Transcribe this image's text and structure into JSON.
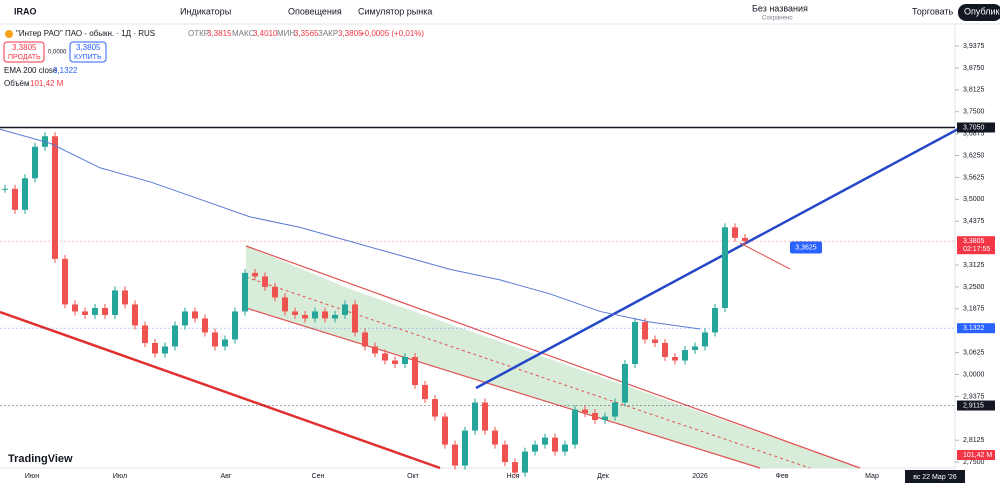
{
  "toolbar": {
    "symbol": "IRAO",
    "indicators": "Индикаторы",
    "alerts": "Оповещения",
    "replay": "Симулятор рынка",
    "layout_name": "Без названия",
    "layout_status": "Сохранено",
    "trade": "Торговать",
    "publish": "Опубликовать"
  },
  "legend": {
    "title": "\"Интер РАО\" ПАО - обыкн. · 1Д · RUS",
    "open_label": "ОТКР",
    "open": "3,3815",
    "high_label": "МАКС",
    "high": "3,4010",
    "low_label": "МИН",
    "low": "3,3565",
    "close_label": "ЗАКР",
    "close": "3,3805",
    "change": "+0,0005 (+0,01%)",
    "sell_price": "3,3805",
    "sell": "ПРОДАТЬ",
    "spread": "0,0000",
    "buy_price": "3,3805",
    "buy": "КУПИТЬ",
    "ema_label": "EMA 200 close",
    "ema_value": "3,1322",
    "volume_label": "Объём",
    "volume_value": "101,42 M"
  },
  "chart_data": {
    "type": "candlestick",
    "ylim": [
      2.7332,
      3.9975
    ],
    "yticks": [
      {
        "value": 3.9375,
        "label": "3,9375"
      },
      {
        "value": 3.875,
        "label": "3,8750"
      },
      {
        "value": 3.8125,
        "label": "3,8125"
      },
      {
        "value": 3.75,
        "label": "3,7500"
      },
      {
        "value": 3.6875,
        "label": "3,6875"
      },
      {
        "value": 3.625,
        "label": "3,6250"
      },
      {
        "value": 3.5625,
        "label": "3,5625"
      },
      {
        "value": 3.5,
        "label": "3,5000"
      },
      {
        "value": 3.4375,
        "label": "3,4375"
      },
      {
        "value": 3.3125,
        "label": "3,3125"
      },
      {
        "value": 3.25,
        "label": "3,2500"
      },
      {
        "value": 3.1875,
        "label": "3,1875"
      },
      {
        "value": 3.0625,
        "label": "3,0625"
      },
      {
        "value": 3.0,
        "label": "3,0000"
      },
      {
        "value": 2.9375,
        "label": "2,9375"
      },
      {
        "value": 2.8125,
        "label": "2,8125"
      },
      {
        "value": 2.75,
        "label": "2,7500"
      }
    ],
    "x_labels": [
      "Июн",
      "Июл",
      "Авг",
      "Сен",
      "Окт",
      "Ноя",
      "Дек",
      "2026",
      "Фев",
      "Мар"
    ],
    "cursor_date": "вс 22 Мар '26",
    "closes": [
      3.53,
      3.47,
      3.56,
      3.65,
      3.68,
      3.33,
      3.2,
      3.18,
      3.17,
      3.19,
      3.17,
      3.24,
      3.2,
      3.14,
      3.09,
      3.06,
      3.08,
      3.14,
      3.18,
      3.16,
      3.12,
      3.08,
      3.1,
      3.18,
      3.29,
      3.28,
      3.25,
      3.22,
      3.18,
      3.17,
      3.16,
      3.18,
      3.16,
      3.17,
      3.2,
      3.12,
      3.08,
      3.06,
      3.04,
      3.03,
      3.05,
      2.97,
      2.93,
      2.88,
      2.8,
      2.74,
      2.84,
      2.92,
      2.84,
      2.8,
      2.75,
      2.72,
      2.78,
      2.8,
      2.82,
      2.78,
      2.8,
      2.9,
      2.89,
      2.87,
      2.88,
      2.92,
      3.03,
      3.15,
      3.1,
      3.09,
      3.05,
      3.04,
      3.07,
      3.08,
      3.12,
      3.19,
      3.42,
      3.39,
      3.3805
    ],
    "ema": [
      3.7,
      3.66,
      3.59,
      3.55,
      3.5,
      3.45,
      3.42,
      3.38,
      3.34,
      3.3,
      3.27,
      3.23,
      3.18,
      3.15,
      3.13
    ],
    "levels": [
      {
        "value": 3.705,
        "label": "3,7050",
        "color": "#131722"
      },
      {
        "value": 3.3805,
        "label": "3,3805",
        "sub": "02:17:55",
        "color": "#f23645"
      },
      {
        "value": 3.1322,
        "label": "3,1322",
        "color": "#2962ff"
      },
      {
        "value": 2.9115,
        "label": "2,9115",
        "color": "#131722"
      }
    ],
    "target": {
      "value": 3.3625,
      "label": "3,3625"
    },
    "volume_badge": "101,42 M",
    "logo": "TradingView"
  }
}
